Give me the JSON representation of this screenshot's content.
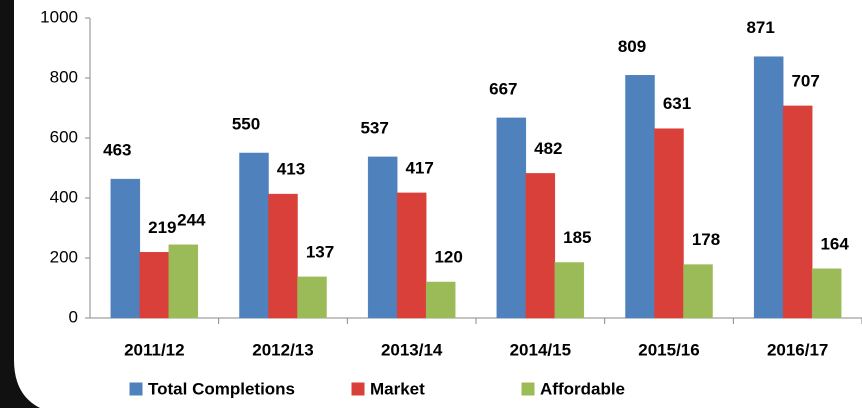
{
  "chart_data": {
    "type": "bar",
    "categories": [
      "2011/12",
      "2012/13",
      "2013/14",
      "2014/15",
      "2015/16",
      "2016/17"
    ],
    "series": [
      {
        "name": "Total Completions",
        "color": "#4f81bd",
        "values": [
          463,
          550,
          537,
          667,
          809,
          871
        ]
      },
      {
        "name": "Market",
        "color": "#d9403a",
        "values": [
          219,
          413,
          417,
          482,
          631,
          707
        ]
      },
      {
        "name": "Affordable",
        "color": "#9bbb59",
        "values": [
          244,
          137,
          120,
          185,
          178,
          164
        ]
      }
    ],
    "ylim": [
      0,
      1000
    ],
    "yticks": [
      0,
      200,
      400,
      600,
      800,
      1000
    ],
    "legend": "bottom"
  }
}
